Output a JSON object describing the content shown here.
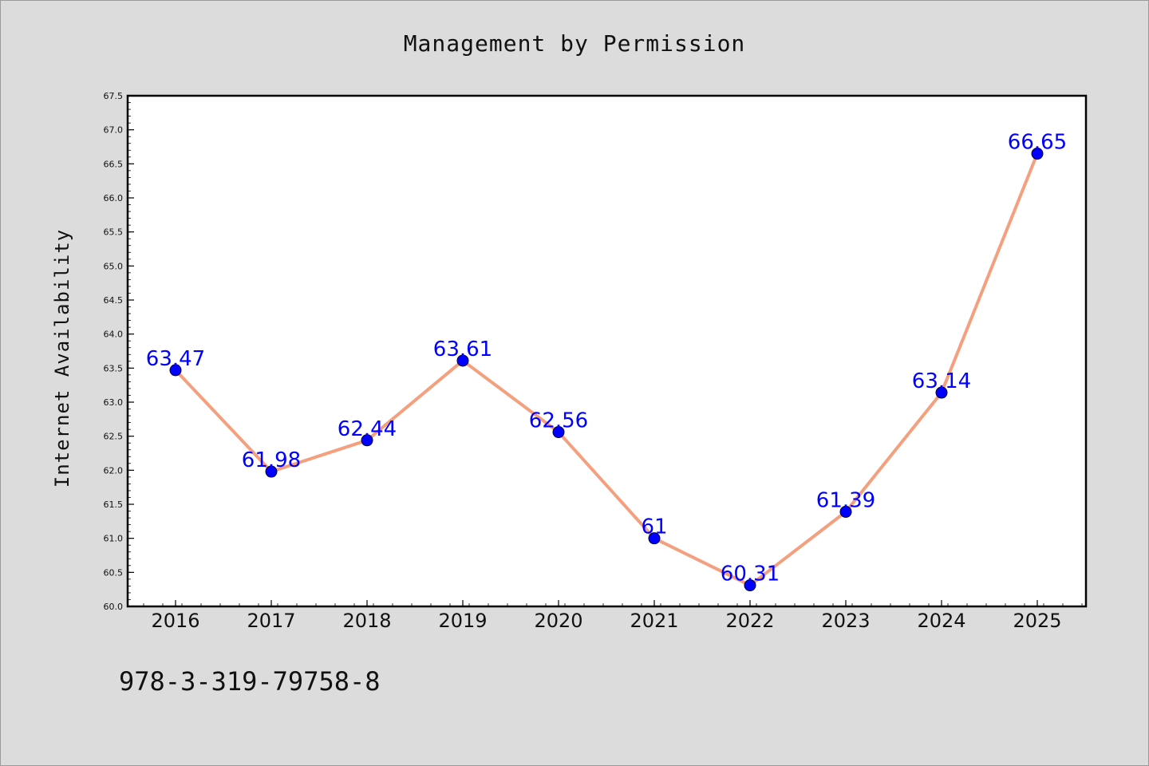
{
  "chart_data": {
    "type": "line",
    "title": "Management by Permission",
    "xlabel": "",
    "ylabel": "Internet Availability",
    "categories": [
      "2016",
      "2017",
      "2018",
      "2019",
      "2020",
      "2021",
      "2022",
      "2023",
      "2024",
      "2025"
    ],
    "series": [
      {
        "values": [
          63.47,
          61.98,
          62.44,
          63.61,
          62.56,
          61,
          60.31,
          61.39,
          63.14,
          66.65
        ],
        "labels": [
          "63.47",
          "61.98",
          "62.44",
          "63.61",
          "62.56",
          "61",
          "60.31",
          "61.39",
          "63.14",
          "66.65"
        ],
        "line_color": "#f4a07e",
        "marker_color": "#0000ff"
      }
    ],
    "ylim": [
      60.0,
      67.5
    ],
    "yticks": [
      "60.0",
      "60.5",
      "61.0",
      "61.5",
      "62.0",
      "62.5",
      "63.0",
      "63.5",
      "64.0",
      "64.5",
      "65.0",
      "65.5",
      "66.0",
      "66.5",
      "67.0",
      "67.5"
    ],
    "grid": false,
    "legend": "none"
  },
  "footer": {
    "isbn": "978-3-319-79758-8"
  },
  "colors": {
    "background": "#dcdcdc",
    "plot_background": "#ffffff",
    "line": "#f4a07e",
    "marker": "#0000ff",
    "data_label": "#0000ff"
  }
}
